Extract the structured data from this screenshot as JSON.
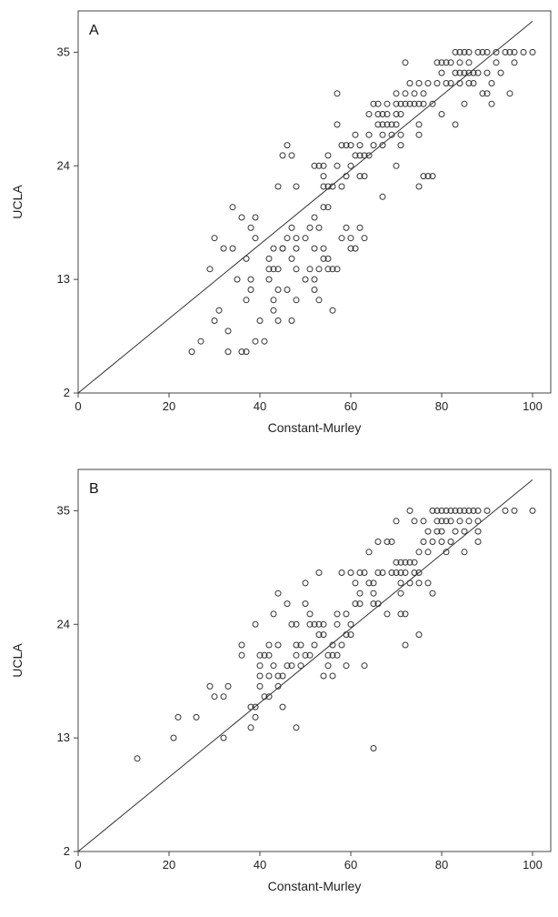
{
  "chart_data": [
    {
      "type": "scatter",
      "panel_label": "A",
      "xlabel": "Constant-Murley",
      "ylabel": "UCLA",
      "xlim": [
        0,
        104
      ],
      "ylim": [
        2,
        39
      ],
      "xticks": [
        0,
        20,
        40,
        60,
        80,
        100
      ],
      "yticks": [
        2,
        13,
        24,
        35
      ],
      "reference_line": [
        [
          0,
          2
        ],
        [
          100,
          38
        ]
      ],
      "points": [
        [
          25,
          6
        ],
        [
          27,
          7
        ],
        [
          29,
          14
        ],
        [
          30,
          17
        ],
        [
          30,
          9
        ],
        [
          31,
          10
        ],
        [
          32,
          16
        ],
        [
          33,
          6
        ],
        [
          33,
          8
        ],
        [
          34,
          16
        ],
        [
          34,
          20
        ],
        [
          35,
          13
        ],
        [
          36,
          19
        ],
        [
          36,
          6
        ],
        [
          37,
          6
        ],
        [
          37,
          11
        ],
        [
          37,
          15
        ],
        [
          38,
          18
        ],
        [
          38,
          12
        ],
        [
          38,
          13
        ],
        [
          39,
          17
        ],
        [
          39,
          7
        ],
        [
          39,
          19
        ],
        [
          40,
          9
        ],
        [
          41,
          7
        ],
        [
          42,
          13
        ],
        [
          42,
          15
        ],
        [
          42,
          14
        ],
        [
          43,
          11
        ],
        [
          43,
          14
        ],
        [
          43,
          16
        ],
        [
          43,
          10
        ],
        [
          44,
          9
        ],
        [
          44,
          14
        ],
        [
          44,
          12
        ],
        [
          45,
          16
        ],
        [
          45,
          16
        ],
        [
          46,
          17
        ],
        [
          46,
          12
        ],
        [
          47,
          18
        ],
        [
          47,
          15
        ],
        [
          47,
          9
        ],
        [
          48,
          17
        ],
        [
          48,
          22
        ],
        [
          48,
          11
        ],
        [
          48,
          16
        ],
        [
          48,
          14
        ],
        [
          50,
          13
        ],
        [
          50,
          17
        ],
        [
          51,
          18
        ],
        [
          51,
          14
        ],
        [
          52,
          16
        ],
        [
          52,
          19
        ],
        [
          52,
          12
        ],
        [
          52,
          13
        ],
        [
          53,
          18
        ],
        [
          53,
          14
        ],
        [
          53,
          11
        ],
        [
          54,
          20
        ],
        [
          54,
          15
        ],
        [
          54,
          16
        ],
        [
          55,
          14
        ],
        [
          55,
          20
        ],
        [
          55,
          15
        ],
        [
          56,
          10
        ],
        [
          56,
          14
        ],
        [
          57,
          14
        ],
        [
          58,
          17
        ],
        [
          59,
          18
        ],
        [
          60,
          16
        ],
        [
          60,
          17
        ],
        [
          61,
          16
        ],
        [
          62,
          18
        ],
        [
          63,
          17
        ],
        [
          45,
          25
        ],
        [
          46,
          26
        ],
        [
          47,
          25
        ],
        [
          44,
          22
        ],
        [
          52,
          24
        ],
        [
          53,
          24
        ],
        [
          54,
          24
        ],
        [
          54,
          23
        ],
        [
          54,
          22
        ],
        [
          55,
          22
        ],
        [
          55,
          25
        ],
        [
          56,
          22
        ],
        [
          57,
          24
        ],
        [
          57,
          28
        ],
        [
          57,
          31
        ],
        [
          58,
          26
        ],
        [
          58,
          22
        ],
        [
          59,
          23
        ],
        [
          59,
          26
        ],
        [
          60,
          24
        ],
        [
          60,
          26
        ],
        [
          61,
          25
        ],
        [
          61,
          27
        ],
        [
          62,
          25
        ],
        [
          62,
          23
        ],
        [
          62,
          26
        ],
        [
          63,
          25
        ],
        [
          63,
          23
        ],
        [
          64,
          25
        ],
        [
          64,
          27
        ],
        [
          64,
          29
        ],
        [
          65,
          30
        ],
        [
          65,
          26
        ],
        [
          66,
          28
        ],
        [
          66,
          30
        ],
        [
          66,
          29
        ],
        [
          67,
          28
        ],
        [
          67,
          27
        ],
        [
          67,
          26
        ],
        [
          67,
          29
        ],
        [
          67,
          21
        ],
        [
          68,
          29
        ],
        [
          68,
          28
        ],
        [
          68,
          30
        ],
        [
          69,
          27
        ],
        [
          69,
          28
        ],
        [
          70,
          28
        ],
        [
          70,
          29
        ],
        [
          70,
          30
        ],
        [
          70,
          31
        ],
        [
          70,
          24
        ],
        [
          71,
          29
        ],
        [
          71,
          30
        ],
        [
          71,
          27
        ],
        [
          71,
          26
        ],
        [
          72,
          31
        ],
        [
          72,
          30
        ],
        [
          72,
          34
        ],
        [
          73,
          30
        ],
        [
          73,
          32
        ],
        [
          74,
          30
        ],
        [
          74,
          31
        ],
        [
          75,
          30
        ],
        [
          75,
          28
        ],
        [
          75,
          32
        ],
        [
          75,
          27
        ],
        [
          75,
          22
        ],
        [
          76,
          30
        ],
        [
          76,
          31
        ],
        [
          76,
          23
        ],
        [
          77,
          23
        ],
        [
          77,
          32
        ],
        [
          78,
          30
        ],
        [
          78,
          23
        ],
        [
          79,
          34
        ],
        [
          79,
          32
        ],
        [
          80,
          29
        ],
        [
          80,
          33
        ],
        [
          80,
          34
        ],
        [
          81,
          32
        ],
        [
          81,
          34
        ],
        [
          82,
          32
        ],
        [
          82,
          34
        ],
        [
          83,
          33
        ],
        [
          83,
          35
        ],
        [
          83,
          28
        ],
        [
          84,
          33
        ],
        [
          84,
          34
        ],
        [
          84,
          35
        ],
        [
          84,
          32
        ],
        [
          85,
          33
        ],
        [
          85,
          30
        ],
        [
          85,
          35
        ],
        [
          86,
          33
        ],
        [
          86,
          32
        ],
        [
          86,
          34
        ],
        [
          86,
          35
        ],
        [
          87,
          33
        ],
        [
          87,
          32
        ],
        [
          88,
          33
        ],
        [
          88,
          35
        ],
        [
          89,
          31
        ],
        [
          89,
          35
        ],
        [
          90,
          33
        ],
        [
          90,
          35
        ],
        [
          90,
          31
        ],
        [
          91,
          32
        ],
        [
          91,
          30
        ],
        [
          92,
          35
        ],
        [
          92,
          34
        ],
        [
          93,
          33
        ],
        [
          94,
          35
        ],
        [
          95,
          35
        ],
        [
          95,
          31
        ],
        [
          96,
          34
        ],
        [
          96,
          35
        ],
        [
          98,
          35
        ],
        [
          100,
          35
        ]
      ]
    },
    {
      "type": "scatter",
      "panel_label": "B",
      "xlabel": "Constant-Murley",
      "ylabel": "UCLA",
      "xlim": [
        0,
        104
      ],
      "ylim": [
        2,
        39
      ],
      "xticks": [
        0,
        20,
        40,
        60,
        80,
        100
      ],
      "yticks": [
        2,
        13,
        24,
        35
      ],
      "reference_line": [
        [
          0,
          2
        ],
        [
          100,
          38
        ]
      ],
      "points": [
        [
          13,
          11
        ],
        [
          21,
          13
        ],
        [
          22,
          15
        ],
        [
          26,
          15
        ],
        [
          29,
          18
        ],
        [
          30,
          17
        ],
        [
          32,
          17
        ],
        [
          32,
          13
        ],
        [
          33,
          18
        ],
        [
          36,
          22
        ],
        [
          36,
          21
        ],
        [
          38,
          16
        ],
        [
          38,
          14
        ],
        [
          39,
          15
        ],
        [
          39,
          16
        ],
        [
          39,
          24
        ],
        [
          40,
          20
        ],
        [
          40,
          19
        ],
        [
          40,
          21
        ],
        [
          40,
          18
        ],
        [
          41,
          21
        ],
        [
          41,
          17
        ],
        [
          42,
          19
        ],
        [
          42,
          17
        ],
        [
          42,
          22
        ],
        [
          42,
          21
        ],
        [
          43,
          25
        ],
        [
          43,
          20
        ],
        [
          44,
          18
        ],
        [
          44,
          22
        ],
        [
          44,
          27
        ],
        [
          44,
          19
        ],
        [
          45,
          16
        ],
        [
          45,
          19
        ],
        [
          46,
          20
        ],
        [
          46,
          26
        ],
        [
          47,
          20
        ],
        [
          47,
          24
        ],
        [
          48,
          22
        ],
        [
          48,
          21
        ],
        [
          48,
          24
        ],
        [
          48,
          14
        ],
        [
          49,
          22
        ],
        [
          49,
          20
        ],
        [
          50,
          21
        ],
        [
          50,
          28
        ],
        [
          50,
          26
        ],
        [
          51,
          21
        ],
        [
          51,
          25
        ],
        [
          51,
          24
        ],
        [
          52,
          24
        ],
        [
          52,
          22
        ],
        [
          53,
          24
        ],
        [
          53,
          29
        ],
        [
          53,
          23
        ],
        [
          54,
          19
        ],
        [
          54,
          24
        ],
        [
          54,
          23
        ],
        [
          55,
          20
        ],
        [
          55,
          21
        ],
        [
          56,
          19
        ],
        [
          56,
          21
        ],
        [
          56,
          22
        ],
        [
          57,
          25
        ],
        [
          57,
          21
        ],
        [
          57,
          24
        ],
        [
          58,
          29
        ],
        [
          58,
          22
        ],
        [
          59,
          25
        ],
        [
          59,
          20
        ],
        [
          59,
          23
        ],
        [
          60,
          29
        ],
        [
          60,
          24
        ],
        [
          60,
          23
        ],
        [
          61,
          28
        ],
        [
          61,
          26
        ],
        [
          62,
          29
        ],
        [
          62,
          26
        ],
        [
          62,
          27
        ],
        [
          63,
          29
        ],
        [
          63,
          20
        ],
        [
          64,
          31
        ],
        [
          64,
          28
        ],
        [
          65,
          28
        ],
        [
          65,
          27
        ],
        [
          65,
          26
        ],
        [
          65,
          12
        ],
        [
          66,
          26
        ],
        [
          66,
          29
        ],
        [
          66,
          32
        ],
        [
          67,
          29
        ],
        [
          68,
          32
        ],
        [
          68,
          25
        ],
        [
          69,
          32
        ],
        [
          69,
          29
        ],
        [
          70,
          29
        ],
        [
          70,
          30
        ],
        [
          70,
          34
        ],
        [
          71,
          30
        ],
        [
          71,
          29
        ],
        [
          71,
          27
        ],
        [
          71,
          28
        ],
        [
          71,
          25
        ],
        [
          72,
          25
        ],
        [
          72,
          30
        ],
        [
          72,
          22
        ],
        [
          72,
          29
        ],
        [
          73,
          28
        ],
        [
          73,
          30
        ],
        [
          73,
          35
        ],
        [
          74,
          30
        ],
        [
          74,
          29
        ],
        [
          74,
          34
        ],
        [
          75,
          29
        ],
        [
          75,
          28
        ],
        [
          75,
          31
        ],
        [
          75,
          23
        ],
        [
          76,
          32
        ],
        [
          76,
          34
        ],
        [
          77,
          33
        ],
        [
          77,
          31
        ],
        [
          77,
          28
        ],
        [
          78,
          35
        ],
        [
          78,
          32
        ],
        [
          78,
          27
        ],
        [
          79,
          34
        ],
        [
          79,
          35
        ],
        [
          79,
          33
        ],
        [
          80,
          35
        ],
        [
          80,
          34
        ],
        [
          80,
          33
        ],
        [
          80,
          32
        ],
        [
          81,
          35
        ],
        [
          81,
          34
        ],
        [
          81,
          31
        ],
        [
          82,
          35
        ],
        [
          82,
          34
        ],
        [
          82,
          32
        ],
        [
          83,
          35
        ],
        [
          83,
          33
        ],
        [
          84,
          35
        ],
        [
          84,
          34
        ],
        [
          85,
          35
        ],
        [
          85,
          33
        ],
        [
          85,
          31
        ],
        [
          86,
          35
        ],
        [
          86,
          34
        ],
        [
          87,
          35
        ],
        [
          88,
          35
        ],
        [
          88,
          34
        ],
        [
          88,
          33
        ],
        [
          88,
          32
        ],
        [
          90,
          35
        ],
        [
          94,
          35
        ],
        [
          96,
          35
        ],
        [
          100,
          35
        ]
      ]
    }
  ]
}
